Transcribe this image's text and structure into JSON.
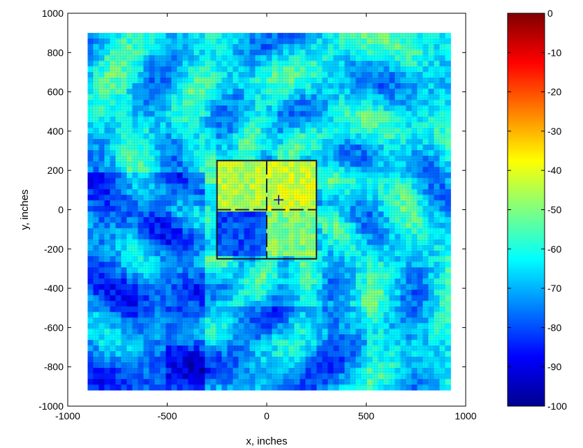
{
  "chart_data": [
    {
      "type": "heatmap",
      "title": "",
      "xlabel": "x, inches",
      "ylabel": "y, inches",
      "xlim": [
        -1000,
        1000
      ],
      "ylim": [
        -1000,
        1000
      ],
      "x_ticks": [
        -1000,
        -500,
        0,
        500,
        1000
      ],
      "x_tick_labels": [
        "-1000",
        "-500",
        "0",
        "500",
        "1000"
      ],
      "y_ticks": [
        1000,
        800,
        600,
        400,
        200,
        0,
        -200,
        -400,
        -600,
        -800,
        -1000
      ],
      "y_tick_labels": [
        "1000",
        "800",
        "600",
        "400",
        "200",
        "0",
        "-200",
        "-400",
        "-600",
        "-800",
        "-1000"
      ],
      "heatmap_extent": {
        "x": [
          -900,
          900
        ],
        "y": [
          -900,
          900
        ]
      },
      "square_extent": {
        "x": [
          -250,
          250
        ],
        "y": [
          -250,
          250
        ]
      },
      "marker": {
        "x": 60,
        "y": 50,
        "symbol": "+"
      },
      "colorbar": {
        "colormap": "jet",
        "range": [
          -100,
          0
        ],
        "ticks": [
          0,
          -10,
          -20,
          -30,
          -40,
          -50,
          -60,
          -70,
          -80,
          -90,
          -100
        ],
        "tick_labels": [
          "0",
          "-10",
          "-20",
          "-30",
          "-40",
          "-50",
          "-60",
          "-70",
          "-80",
          "-90",
          "-100"
        ]
      },
      "region_levels": {
        "background": -65,
        "square_upper_left": -45,
        "square_upper_right": -42,
        "square_lower_left": -80,
        "square_lower_right": -50
      }
    }
  ]
}
